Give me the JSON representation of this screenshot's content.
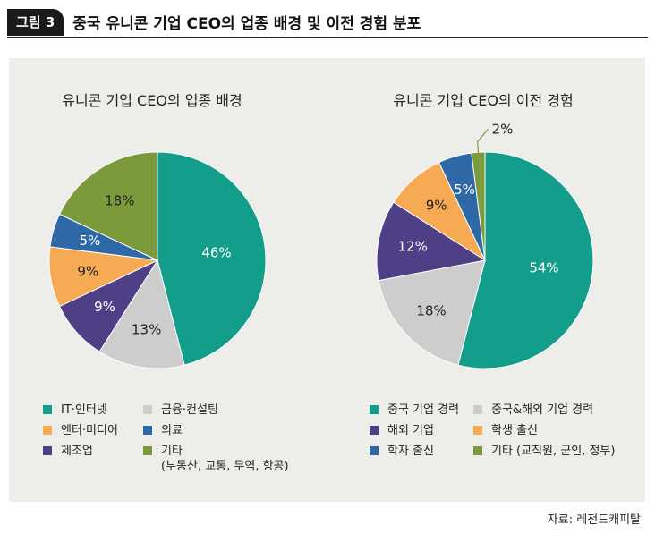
{
  "figure": {
    "badge": "그림 3",
    "title": "중국 유니콘 기업 CEO의 업종 배경 및 이전 경험 분포"
  },
  "source": "자료: 레전드캐피탈",
  "colors": {
    "teal": "#139e8c",
    "gray": "#cdcdcd",
    "orange": "#f6aa54",
    "purple": "#4e3f87",
    "blue": "#2e68a6",
    "olive": "#7a9a3c"
  },
  "chart_data": [
    {
      "type": "pie",
      "title": "유니콘 기업 CEO의 업종 배경",
      "slices": [
        {
          "label": "IT·인터넷",
          "value": 46,
          "value_label": "46%",
          "color": "#139e8c"
        },
        {
          "label": "금융·컨설팅",
          "value": 13,
          "value_label": "13%",
          "color": "#cdcdcd"
        },
        {
          "label": "제조업",
          "value": 9,
          "value_label": "9%",
          "color": "#4e3f87"
        },
        {
          "label": "엔터·미디어",
          "value": 9,
          "value_label": "9%",
          "color": "#f6aa54"
        },
        {
          "label": "의료",
          "value": 5,
          "value_label": "5%",
          "color": "#2e68a6"
        },
        {
          "label": "기타",
          "note": "(부동산, 교통, 무역, 항공)",
          "value": 18,
          "value_label": "18%",
          "color": "#7a9a3c"
        }
      ],
      "legend_order": [
        "IT·인터넷",
        "금융·컨설팅",
        "엔터·미디어",
        "의료",
        "제조업",
        "기타"
      ]
    },
    {
      "type": "pie",
      "title": "유니콘 기업 CEO의 이전 경험",
      "slices": [
        {
          "label": "중국 기업 경력",
          "value": 54,
          "value_label": "54%",
          "color": "#139e8c"
        },
        {
          "label": "중국&해외 기업 경력",
          "value": 18,
          "value_label": "18%",
          "color": "#cdcdcd"
        },
        {
          "label": "해외 기업",
          "value": 12,
          "value_label": "12%",
          "color": "#4e3f87"
        },
        {
          "label": "학생 출신",
          "value": 9,
          "value_label": "9%",
          "color": "#f6aa54"
        },
        {
          "label": "학자 출신",
          "value": 5,
          "value_label": "5%",
          "color": "#2e68a6"
        },
        {
          "label": "기타 (교직원, 군인, 정부)",
          "value": 2,
          "value_label": "2%",
          "color": "#7a9a3c"
        }
      ],
      "legend_order": [
        "중국 기업 경력",
        "중국&해외 기업 경력",
        "해외 기업",
        "학생 출신",
        "학자 출신",
        "기타 (교직원, 군인, 정부)"
      ]
    }
  ]
}
